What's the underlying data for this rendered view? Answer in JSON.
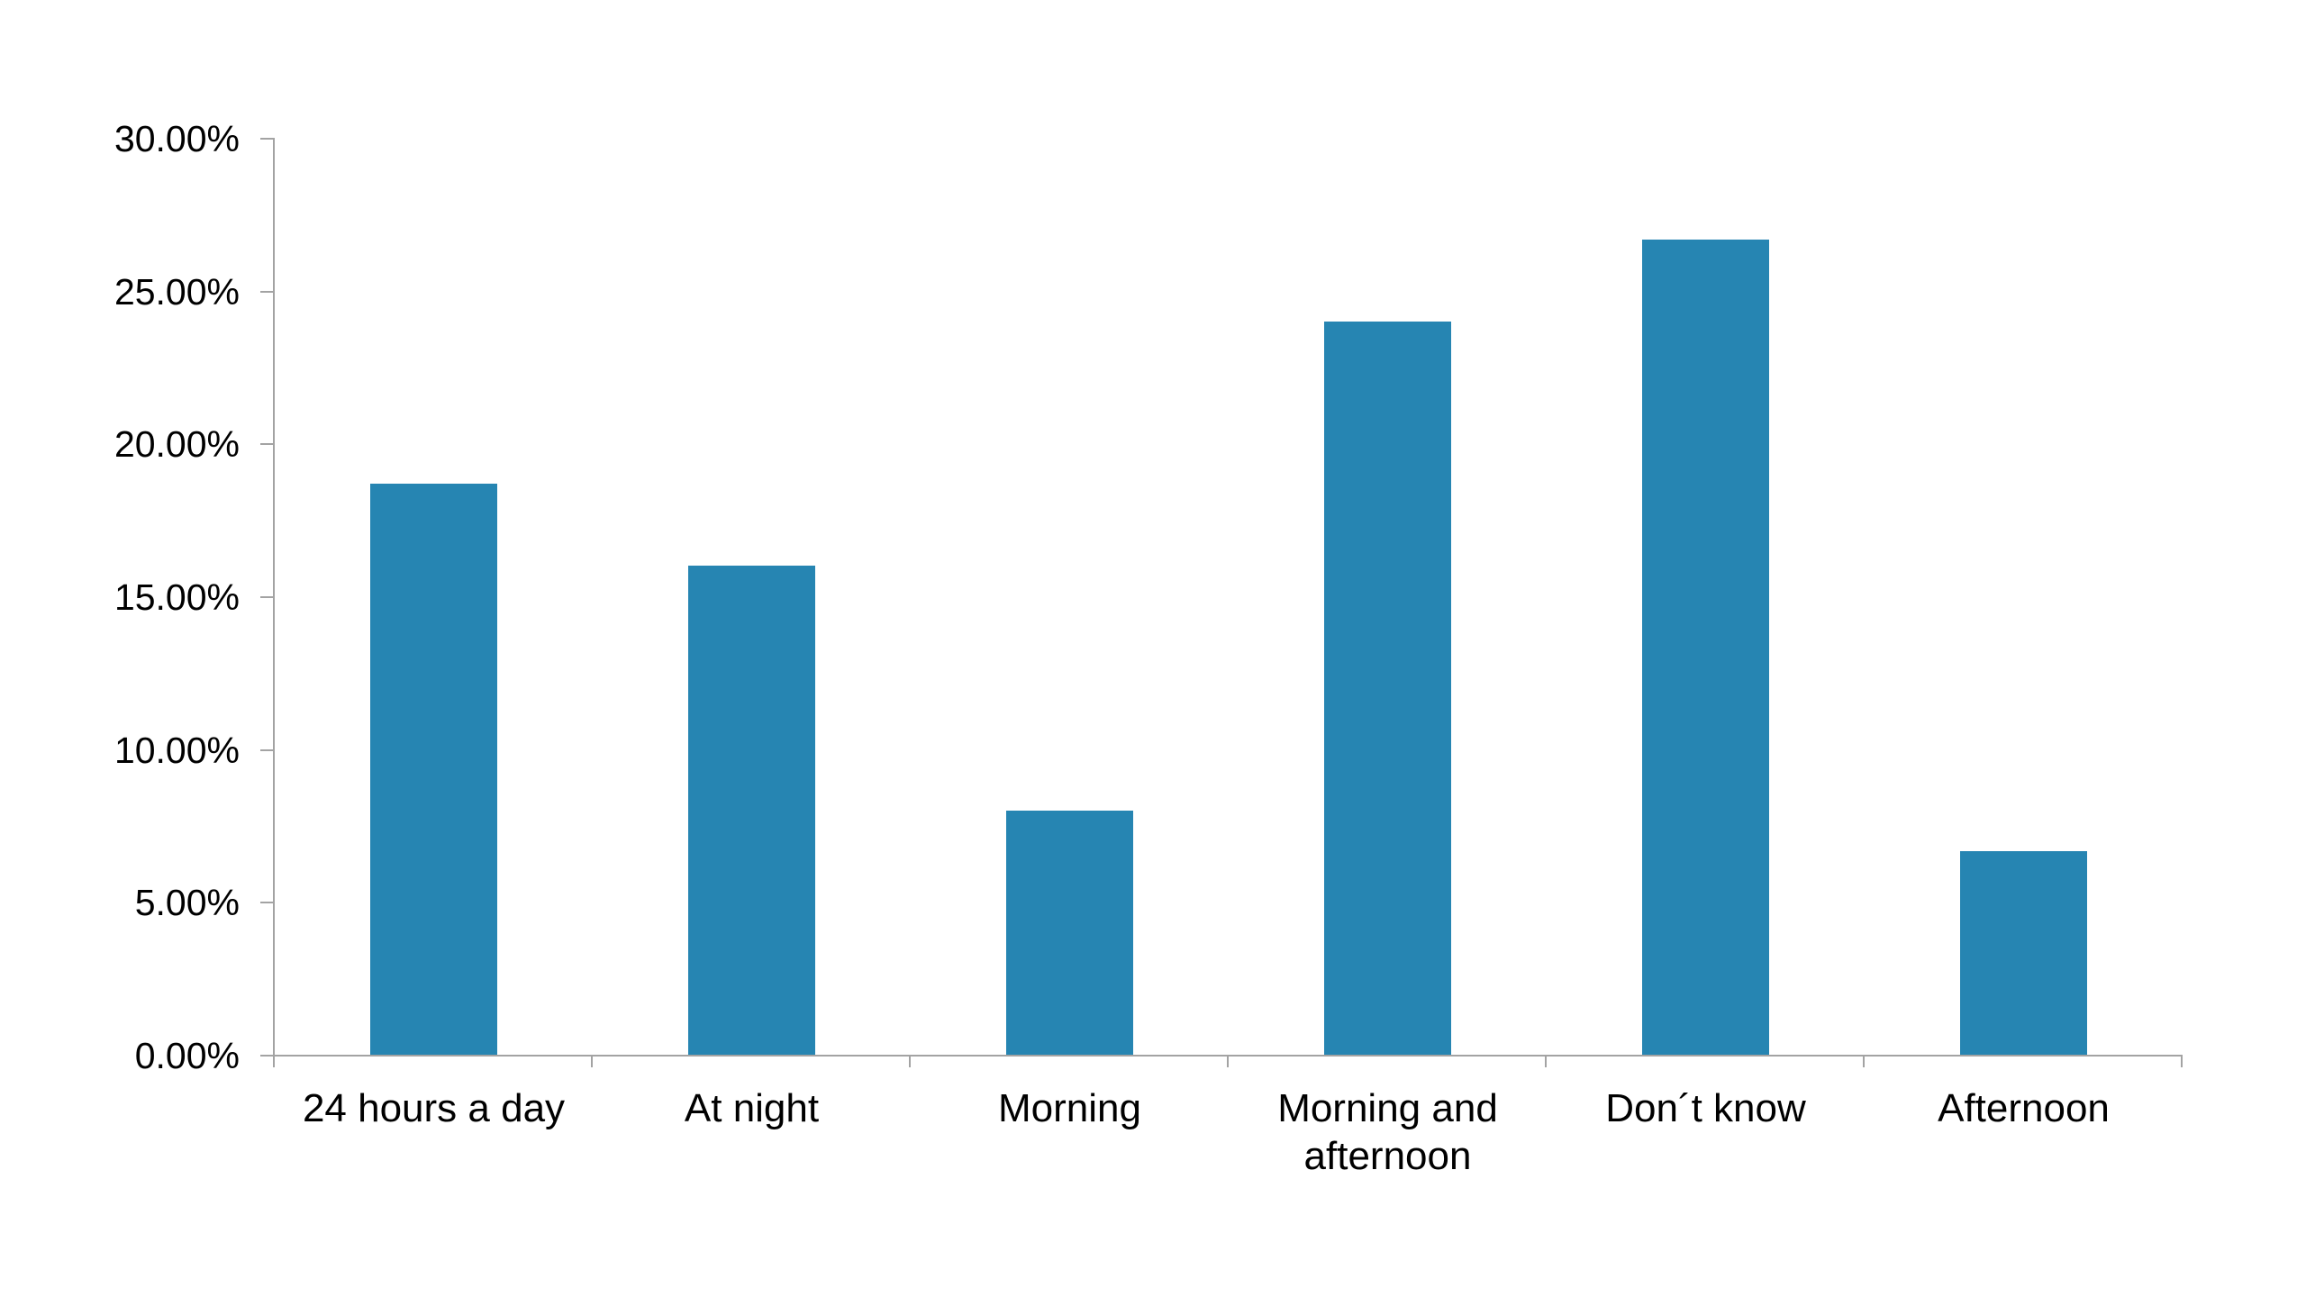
{
  "chart_data": {
    "type": "bar",
    "categories": [
      "24 hours a day",
      "At night",
      "Morning",
      "Morning and afternoon",
      "Don´t know",
      "Afternoon"
    ],
    "values": [
      18.67,
      16.0,
      8.0,
      24.0,
      26.67,
      6.67
    ],
    "title": "",
    "xlabel": "",
    "ylabel": "",
    "ylim": [
      0,
      30
    ],
    "ytick_step": 5,
    "ytick_labels": [
      "0.00%",
      "5.00%",
      "10.00%",
      "15.00%",
      "20.00%",
      "25.00%",
      "30.00%"
    ],
    "grid": false,
    "legend": false,
    "colors": {
      "bar": "#2685b2",
      "axis": "#a3a3a3",
      "text": "#000000",
      "background": "#ffffff"
    }
  }
}
